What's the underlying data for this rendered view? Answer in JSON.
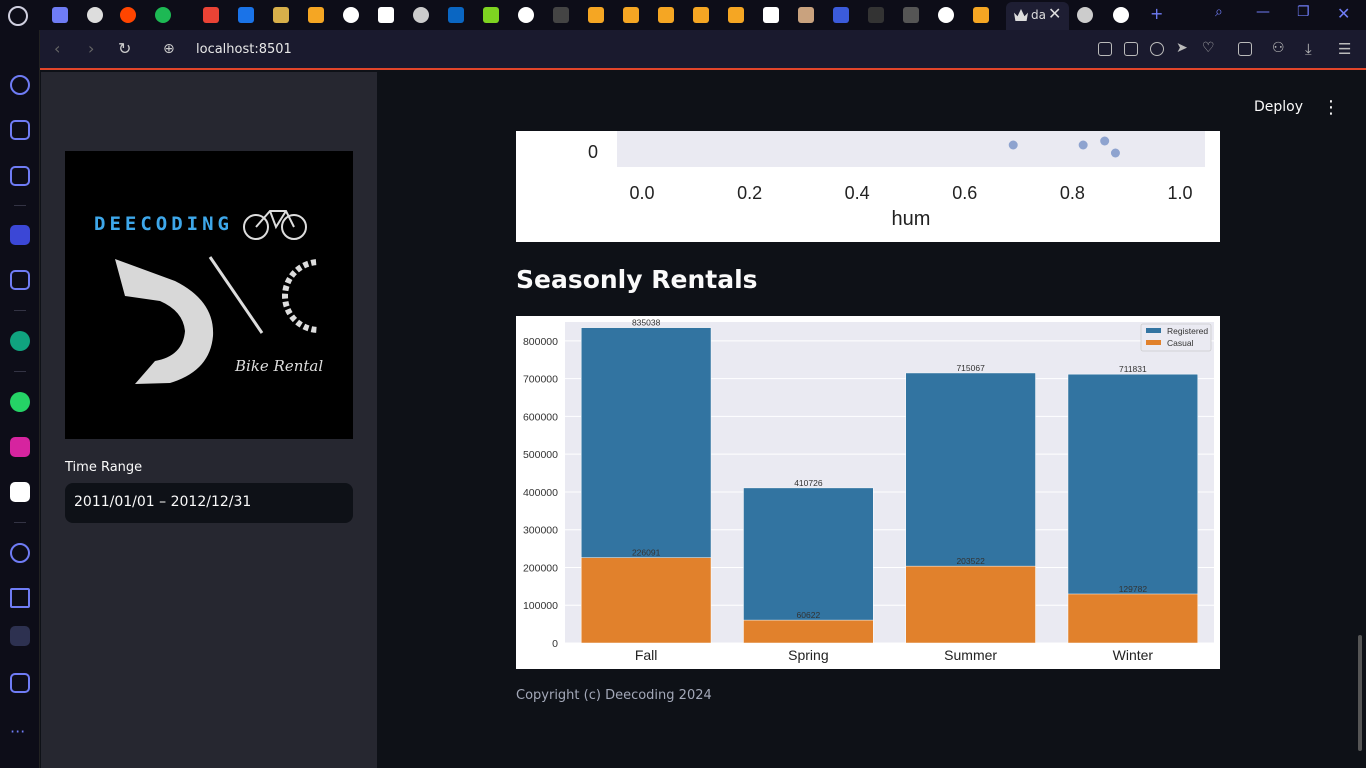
{
  "browser": {
    "active_tab_title": "da",
    "url": "localhost:8501"
  },
  "streamlit": {
    "deploy_label": "Deploy",
    "sidebar": {
      "logo": {
        "brand": "DEECODING",
        "subtitle": "Bike Rental"
      },
      "time_range_label": "Time Range",
      "time_range_value": "2011/01/01 – 2012/12/31"
    },
    "section_title": "Seasonly Rentals",
    "footer": "Copyright (c) Deecoding 2024"
  },
  "chart_data": [
    {
      "type": "scatter",
      "xlabel": "hum",
      "x_ticks": [
        "0.0",
        "0.2",
        "0.4",
        "0.6",
        "0.8",
        "1.0"
      ],
      "y_ticks": [
        "0"
      ],
      "xlim": [
        0.0,
        1.0
      ],
      "points": [
        {
          "x": 0.69,
          "y": 0.3
        },
        {
          "x": 0.82,
          "y": 0.3
        },
        {
          "x": 0.86,
          "y": 0.5
        },
        {
          "x": 0.88,
          "y": -0.1
        }
      ],
      "point_color": "#8ea3cf",
      "background": "#eaeaf2"
    },
    {
      "type": "bar",
      "stacked": "overlay",
      "categories": [
        "Fall",
        "Spring",
        "Summer",
        "Winter"
      ],
      "series": [
        {
          "name": "Registered",
          "values": [
            835038,
            410726,
            715067,
            711831
          ],
          "color": "#3274a1"
        },
        {
          "name": "Casual",
          "values": [
            226091,
            60622,
            203522,
            129782
          ],
          "color": "#e1812c"
        }
      ],
      "ylim": [
        0,
        850000
      ],
      "y_ticks": [
        0,
        100000,
        200000,
        300000,
        400000,
        500000,
        600000,
        700000,
        800000
      ],
      "legend": "top-right",
      "background": "#eaeaf2"
    }
  ]
}
